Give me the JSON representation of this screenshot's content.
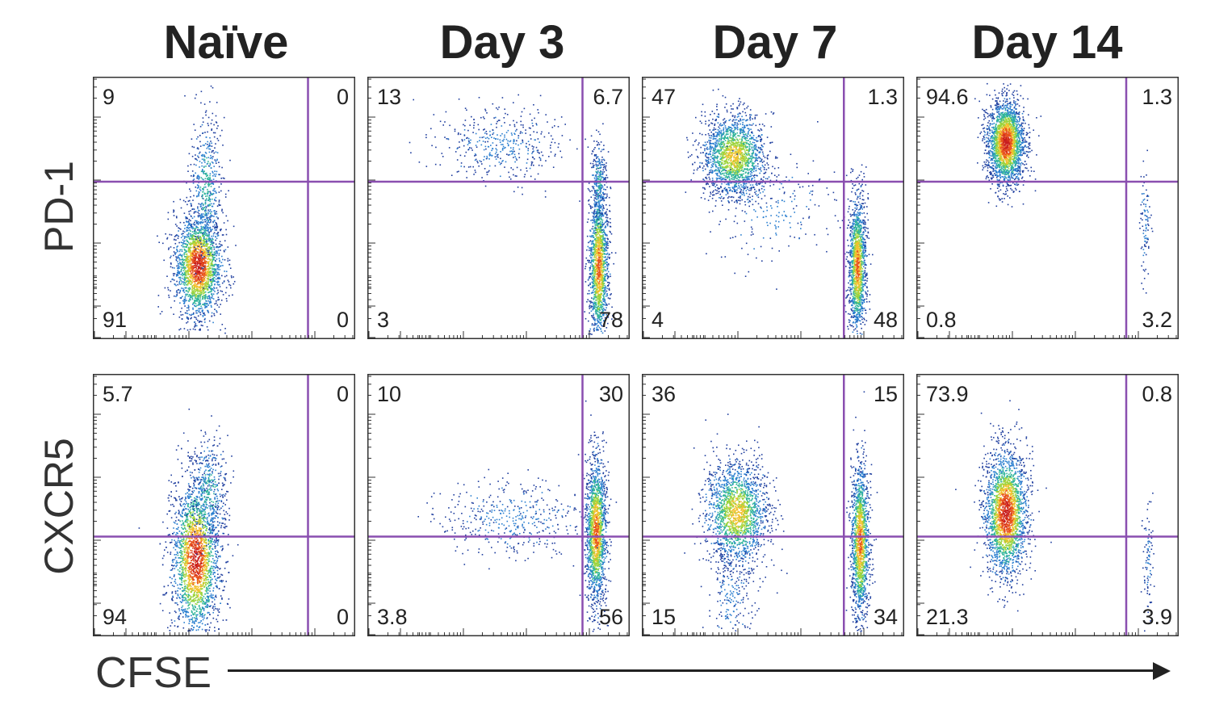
{
  "figure": {
    "x_axis_label": "CFSE",
    "columns": [
      "Naïve",
      "Day 3",
      "Day 7",
      "Day 14"
    ],
    "rows": [
      "PD-1",
      "CXCR5"
    ]
  },
  "colors": {
    "gate": "#8a4fb0",
    "axis": "#333333",
    "density": [
      "#1f3e9e",
      "#2b7fd0",
      "#2fb59a",
      "#9bd43c",
      "#f2c12e",
      "#e8531e",
      "#c81e1e"
    ]
  },
  "chart_data": [
    {
      "type": "scatter",
      "row": "PD-1",
      "column": "Naïve",
      "xlabel": "CFSE",
      "ylabel": "PD-1",
      "quadrants": {
        "upper_left": "9",
        "upper_right": "0",
        "lower_left": "91",
        "lower_right": "0"
      },
      "gate": {
        "x": 0.82,
        "y": 0.6
      },
      "populations": [
        {
          "cx": 0.4,
          "cy": 0.28,
          "sx": 0.045,
          "sy": 0.1,
          "n": 2200,
          "peak": 6
        },
        {
          "cx": 0.43,
          "cy": 0.58,
          "sx": 0.03,
          "sy": 0.14,
          "n": 500,
          "peak": 2
        }
      ]
    },
    {
      "type": "scatter",
      "row": "PD-1",
      "column": "Day 3",
      "xlabel": "CFSE",
      "ylabel": "PD-1",
      "quadrants": {
        "upper_left": "13",
        "upper_right": "6.7",
        "lower_left": "3",
        "lower_right": "78"
      },
      "gate": {
        "x": 0.82,
        "y": 0.6
      },
      "populations": [
        {
          "cx": 0.88,
          "cy": 0.28,
          "sx": 0.018,
          "sy": 0.15,
          "n": 1500,
          "peak": 5
        },
        {
          "cx": 0.88,
          "cy": 0.6,
          "sx": 0.014,
          "sy": 0.08,
          "n": 250,
          "peak": 2
        },
        {
          "cx": 0.5,
          "cy": 0.74,
          "sx": 0.12,
          "sy": 0.07,
          "n": 420,
          "peak": 1
        }
      ]
    },
    {
      "type": "scatter",
      "row": "PD-1",
      "column": "Day 7",
      "xlabel": "CFSE",
      "ylabel": "PD-1",
      "quadrants": {
        "upper_left": "47",
        "upper_right": "1.3",
        "lower_left": "4",
        "lower_right": "48"
      },
      "gate": {
        "x": 0.77,
        "y": 0.6
      },
      "populations": [
        {
          "cx": 0.35,
          "cy": 0.7,
          "sx": 0.06,
          "sy": 0.08,
          "n": 1800,
          "peak": 4
        },
        {
          "cx": 0.82,
          "cy": 0.28,
          "sx": 0.016,
          "sy": 0.13,
          "n": 1400,
          "peak": 5
        },
        {
          "cx": 0.5,
          "cy": 0.5,
          "sx": 0.12,
          "sy": 0.1,
          "n": 200,
          "peak": 1
        }
      ]
    },
    {
      "type": "scatter",
      "row": "PD-1",
      "column": "Day 14",
      "xlabel": "CFSE",
      "ylabel": "PD-1",
      "quadrants": {
        "upper_left": "94.6",
        "upper_right": "1.3",
        "lower_left": "0.8",
        "lower_right": "3.2"
      },
      "gate": {
        "x": 0.8,
        "y": 0.6
      },
      "populations": [
        {
          "cx": 0.34,
          "cy": 0.75,
          "sx": 0.035,
          "sy": 0.08,
          "n": 2300,
          "peak": 6
        },
        {
          "cx": 0.87,
          "cy": 0.45,
          "sx": 0.01,
          "sy": 0.1,
          "n": 90,
          "peak": 1
        }
      ]
    },
    {
      "type": "scatter",
      "row": "CXCR5",
      "column": "Naïve",
      "xlabel": "CFSE",
      "ylabel": "CXCR5",
      "quadrants": {
        "upper_left": "5.7",
        "upper_right": "0",
        "lower_left": "94",
        "lower_right": "0"
      },
      "gate": {
        "x": 0.82,
        "y": 0.38
      },
      "populations": [
        {
          "cx": 0.39,
          "cy": 0.3,
          "sx": 0.045,
          "sy": 0.15,
          "n": 2600,
          "peak": 6
        },
        {
          "cx": 0.44,
          "cy": 0.55,
          "sx": 0.035,
          "sy": 0.1,
          "n": 400,
          "peak": 2
        }
      ]
    },
    {
      "type": "scatter",
      "row": "CXCR5",
      "column": "Day 3",
      "xlabel": "CFSE",
      "ylabel": "CXCR5",
      "quadrants": {
        "upper_left": "10",
        "upper_right": "30",
        "lower_left": "3.8",
        "lower_right": "56"
      },
      "gate": {
        "x": 0.82,
        "y": 0.38
      },
      "populations": [
        {
          "cx": 0.87,
          "cy": 0.4,
          "sx": 0.02,
          "sy": 0.14,
          "n": 1700,
          "peak": 5
        },
        {
          "cx": 0.55,
          "cy": 0.45,
          "sx": 0.14,
          "sy": 0.07,
          "n": 420,
          "peak": 1
        }
      ]
    },
    {
      "type": "scatter",
      "row": "CXCR5",
      "column": "Day 7",
      "xlabel": "CFSE",
      "ylabel": "CXCR5",
      "quadrants": {
        "upper_left": "36",
        "upper_right": "15",
        "lower_left": "15",
        "lower_right": "34"
      },
      "gate": {
        "x": 0.77,
        "y": 0.38
      },
      "populations": [
        {
          "cx": 0.36,
          "cy": 0.47,
          "sx": 0.06,
          "sy": 0.1,
          "n": 1800,
          "peak": 4
        },
        {
          "cx": 0.83,
          "cy": 0.36,
          "sx": 0.017,
          "sy": 0.15,
          "n": 1500,
          "peak": 5
        },
        {
          "cx": 0.34,
          "cy": 0.15,
          "sx": 0.04,
          "sy": 0.1,
          "n": 200,
          "peak": 1
        }
      ]
    },
    {
      "type": "scatter",
      "row": "CXCR5",
      "column": "Day 14",
      "xlabel": "CFSE",
      "ylabel": "CXCR5",
      "quadrants": {
        "upper_left": "73.9",
        "upper_right": "0.8",
        "lower_left": "21.3",
        "lower_right": "3.9"
      },
      "gate": {
        "x": 0.8,
        "y": 0.38
      },
      "populations": [
        {
          "cx": 0.34,
          "cy": 0.47,
          "sx": 0.04,
          "sy": 0.12,
          "n": 2300,
          "peak": 6
        },
        {
          "cx": 0.88,
          "cy": 0.28,
          "sx": 0.01,
          "sy": 0.12,
          "n": 90,
          "peak": 1
        }
      ]
    }
  ]
}
